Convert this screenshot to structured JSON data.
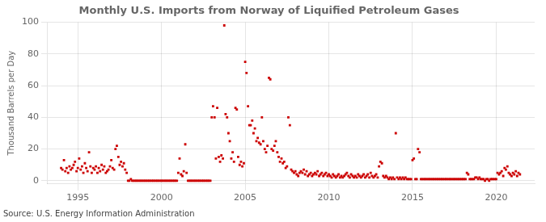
{
  "chart_data": {
    "type": "scatter",
    "title": "Monthly U.S. Imports from Norway of Liquified Petroleum Gases",
    "ylabel": "Thousand Barrels per Day",
    "source": "Source: U.S. Energy Information Administration",
    "color": "#cc0000",
    "marker": "square",
    "grid": true,
    "xlim": [
      1993.2,
      2022.3
    ],
    "ylim": [
      -2,
      100
    ],
    "xticks": [
      1995,
      2000,
      2005,
      2010,
      2015,
      2020
    ],
    "yticks": [
      0,
      20,
      40,
      60,
      80,
      100
    ],
    "x": [
      1994.0,
      1994.08,
      1994.17,
      1994.25,
      1994.33,
      1994.42,
      1994.5,
      1994.58,
      1994.67,
      1994.75,
      1994.83,
      1994.92,
      1995.0,
      1995.08,
      1995.17,
      1995.25,
      1995.33,
      1995.42,
      1995.5,
      1995.58,
      1995.67,
      1995.75,
      1995.83,
      1995.92,
      1996.0,
      1996.08,
      1996.17,
      1996.25,
      1996.33,
      1996.42,
      1996.5,
      1996.58,
      1996.67,
      1996.75,
      1996.83,
      1996.92,
      1997.0,
      1997.08,
      1997.17,
      1997.25,
      1997.33,
      1997.42,
      1997.5,
      1997.58,
      1997.67,
      1997.75,
      1997.83,
      1997.92,
      1998.0,
      1998.08,
      1998.17,
      1998.25,
      1998.33,
      1998.42,
      1998.5,
      1998.58,
      1998.67,
      1998.75,
      1998.83,
      1998.92,
      1999.0,
      1999.08,
      1999.17,
      1999.25,
      1999.33,
      1999.42,
      1999.5,
      1999.58,
      1999.67,
      1999.75,
      1999.83,
      1999.92,
      2000.0,
      2000.08,
      2000.17,
      2000.25,
      2000.33,
      2000.42,
      2000.5,
      2000.58,
      2000.67,
      2000.75,
      2000.83,
      2000.92,
      2001.0,
      2001.08,
      2001.17,
      2001.25,
      2001.33,
      2001.42,
      2001.5,
      2001.58,
      2001.67,
      2001.75,
      2001.83,
      2001.92,
      2002.0,
      2002.08,
      2002.17,
      2002.25,
      2002.33,
      2002.42,
      2002.5,
      2002.58,
      2002.67,
      2002.75,
      2002.83,
      2002.92,
      2003.0,
      2003.08,
      2003.17,
      2003.25,
      2003.33,
      2003.42,
      2003.5,
      2003.58,
      2003.67,
      2003.75,
      2003.83,
      2003.92,
      2004.0,
      2004.08,
      2004.17,
      2004.25,
      2004.33,
      2004.42,
      2004.5,
      2004.58,
      2004.67,
      2004.75,
      2004.83,
      2004.92,
      2005.0,
      2005.08,
      2005.17,
      2005.25,
      2005.33,
      2005.42,
      2005.5,
      2005.58,
      2005.67,
      2005.75,
      2005.83,
      2005.92,
      2006.0,
      2006.08,
      2006.17,
      2006.25,
      2006.33,
      2006.42,
      2006.5,
      2006.58,
      2006.67,
      2006.75,
      2006.83,
      2006.92,
      2007.0,
      2007.08,
      2007.17,
      2007.25,
      2007.33,
      2007.42,
      2007.5,
      2007.58,
      2007.67,
      2007.75,
      2007.83,
      2007.92,
      2008.0,
      2008.08,
      2008.17,
      2008.25,
      2008.33,
      2008.42,
      2008.5,
      2008.58,
      2008.67,
      2008.75,
      2008.83,
      2008.92,
      2009.0,
      2009.08,
      2009.17,
      2009.25,
      2009.33,
      2009.42,
      2009.5,
      2009.58,
      2009.67,
      2009.75,
      2009.83,
      2009.92,
      2010.0,
      2010.08,
      2010.17,
      2010.25,
      2010.33,
      2010.42,
      2010.5,
      2010.58,
      2010.67,
      2010.75,
      2010.83,
      2010.92,
      2011.0,
      2011.08,
      2011.17,
      2011.25,
      2011.33,
      2011.42,
      2011.5,
      2011.58,
      2011.67,
      2011.75,
      2011.83,
      2011.92,
      2012.0,
      2012.08,
      2012.17,
      2012.25,
      2012.33,
      2012.42,
      2012.5,
      2012.58,
      2012.67,
      2012.75,
      2012.83,
      2012.92,
      2013.0,
      2013.08,
      2013.17,
      2013.25,
      2013.33,
      2013.42,
      2013.5,
      2013.58,
      2013.67,
      2013.75,
      2013.83,
      2013.92,
      2014.0,
      2014.08,
      2014.17,
      2014.25,
      2014.33,
      2014.42,
      2014.5,
      2014.58,
      2014.67,
      2014.75,
      2014.83,
      2014.92,
      2015.0,
      2015.08,
      2015.17,
      2015.25,
      2015.33,
      2015.42,
      2015.5,
      2015.58,
      2015.67,
      2015.75,
      2015.83,
      2015.92,
      2016.0,
      2016.08,
      2016.17,
      2016.25,
      2016.33,
      2016.42,
      2016.5,
      2016.58,
      2016.67,
      2016.75,
      2016.83,
      2016.92,
      2017.0,
      2017.08,
      2017.17,
      2017.25,
      2017.33,
      2017.42,
      2017.5,
      2017.58,
      2017.67,
      2017.75,
      2017.83,
      2017.92,
      2018.0,
      2018.08,
      2018.17,
      2018.25,
      2018.33,
      2018.42,
      2018.5,
      2018.58,
      2018.67,
      2018.75,
      2018.83,
      2018.92,
      2019.0,
      2019.08,
      2019.17,
      2019.25,
      2019.33,
      2019.42,
      2019.5,
      2019.58,
      2019.67,
      2019.75,
      2019.83,
      2019.92,
      2020.0,
      2020.08,
      2020.17,
      2020.25,
      2020.33,
      2020.42,
      2020.5,
      2020.58,
      2020.67,
      2020.75,
      2020.83,
      2020.92,
      2021.0,
      2021.08,
      2021.17,
      2021.25,
      2021.33,
      2021.42
    ],
    "values": [
      8,
      7,
      13,
      6,
      8,
      5,
      9,
      7,
      8,
      10,
      12,
      6,
      8,
      14,
      7,
      9,
      5,
      11,
      8,
      6,
      18,
      9,
      5,
      8,
      7,
      9,
      5,
      8,
      6,
      10,
      7,
      9,
      5,
      6,
      7,
      9,
      13,
      8,
      7,
      20,
      22,
      15,
      10,
      12,
      9,
      11,
      7,
      5,
      0,
      0,
      1,
      0,
      0,
      0,
      0,
      0,
      0,
      0,
      0,
      0,
      0,
      0,
      0,
      0,
      0,
      0,
      0,
      0,
      0,
      0,
      0,
      0,
      0,
      0,
      0,
      0,
      0,
      0,
      0,
      0,
      0,
      0,
      0,
      0,
      5,
      14,
      4,
      3,
      6,
      23,
      5,
      0,
      0,
      0,
      0,
      0,
      0,
      0,
      0,
      0,
      0,
      0,
      0,
      0,
      0,
      0,
      0,
      0,
      40,
      47,
      40,
      14,
      46,
      15,
      12,
      16,
      14,
      98,
      42,
      40,
      30,
      25,
      14,
      18,
      12,
      46,
      45,
      15,
      10,
      12,
      9,
      11,
      75,
      68,
      47,
      35,
      35,
      38,
      30,
      33,
      25,
      27,
      24,
      23,
      40,
      25,
      20,
      18,
      22,
      65,
      64,
      20,
      19,
      22,
      25,
      18,
      15,
      12,
      14,
      11,
      12,
      8,
      9,
      40,
      35,
      7,
      6,
      5,
      6,
      4,
      3,
      5,
      6,
      5,
      7,
      4,
      6,
      3,
      4,
      5,
      3,
      4,
      5,
      4,
      6,
      3,
      4,
      5,
      3,
      4,
      5,
      3,
      4,
      3,
      2,
      4,
      3,
      2,
      3,
      4,
      2,
      3,
      2,
      3,
      4,
      5,
      3,
      2,
      4,
      3,
      2,
      3,
      2,
      4,
      3,
      2,
      3,
      4,
      2,
      3,
      4,
      2,
      5,
      3,
      2,
      3,
      4,
      2,
      9,
      12,
      11,
      3,
      2,
      3,
      2,
      1,
      2,
      1,
      2,
      1,
      30,
      2,
      1,
      2,
      1,
      2,
      1,
      2,
      1,
      1,
      1,
      1,
      13,
      14,
      1,
      1,
      20,
      18,
      1,
      1,
      1,
      1,
      1,
      1,
      1,
      1,
      1,
      1,
      1,
      1,
      1,
      1,
      1,
      1,
      1,
      1,
      1,
      1,
      1,
      1,
      1,
      1,
      1,
      1,
      1,
      1,
      1,
      1,
      1,
      1,
      1,
      5,
      4,
      1,
      1,
      1,
      1,
      2,
      2,
      1,
      2,
      1,
      1,
      1,
      0,
      1,
      1,
      0,
      1,
      1,
      1,
      1,
      1,
      5,
      4,
      5,
      6,
      3,
      8,
      7,
      9,
      5,
      4,
      3,
      5,
      4,
      6,
      3,
      5,
      4
    ]
  }
}
